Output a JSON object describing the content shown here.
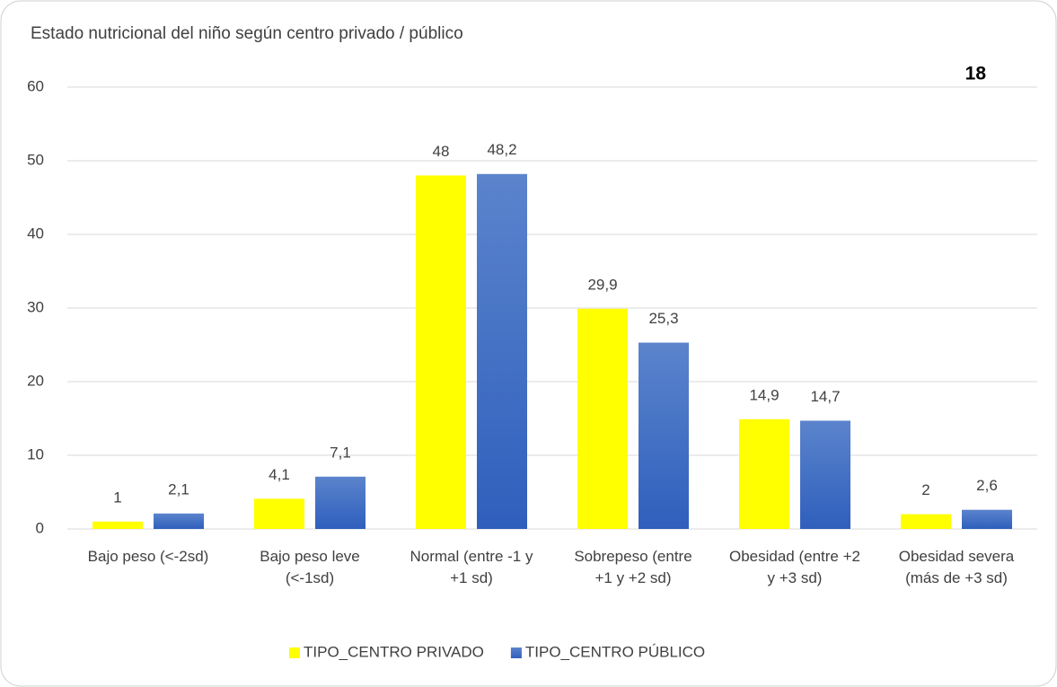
{
  "chart_data": {
    "type": "bar",
    "title": "Estado nutricional del niño según centro privado / público",
    "annotation": "18",
    "categories": [
      "Bajo peso (<-2sd)",
      "Bajo peso leve (<-1sd)",
      "Normal (entre -1 y +1 sd)",
      "Sobrepeso (entre +1 y  +2 sd)",
      "Obesidad (entre +2 y  +3 sd)",
      "Obesidad severa (más de +3 sd)"
    ],
    "series": [
      {
        "name": "TIPO_CENTRO PRIVADO",
        "color": "#ffff00",
        "values": [
          1,
          4.1,
          48,
          29.9,
          14.9,
          2
        ],
        "value_labels": [
          "1",
          "4,1",
          "48",
          "29,9",
          "14,9",
          "2"
        ]
      },
      {
        "name": "TIPO_CENTRO PÚBLICO",
        "color": "#4472c4",
        "values": [
          2.1,
          7.1,
          48.2,
          25.3,
          14.7,
          2.6
        ],
        "value_labels": [
          "2,1",
          "7,1",
          "48,2",
          "25,3",
          "14,7",
          "2,6"
        ]
      }
    ],
    "ylim": [
      0,
      60
    ],
    "yticks": [
      0,
      10,
      20,
      30,
      40,
      50,
      60
    ],
    "grid": true,
    "legend": "bottom"
  }
}
